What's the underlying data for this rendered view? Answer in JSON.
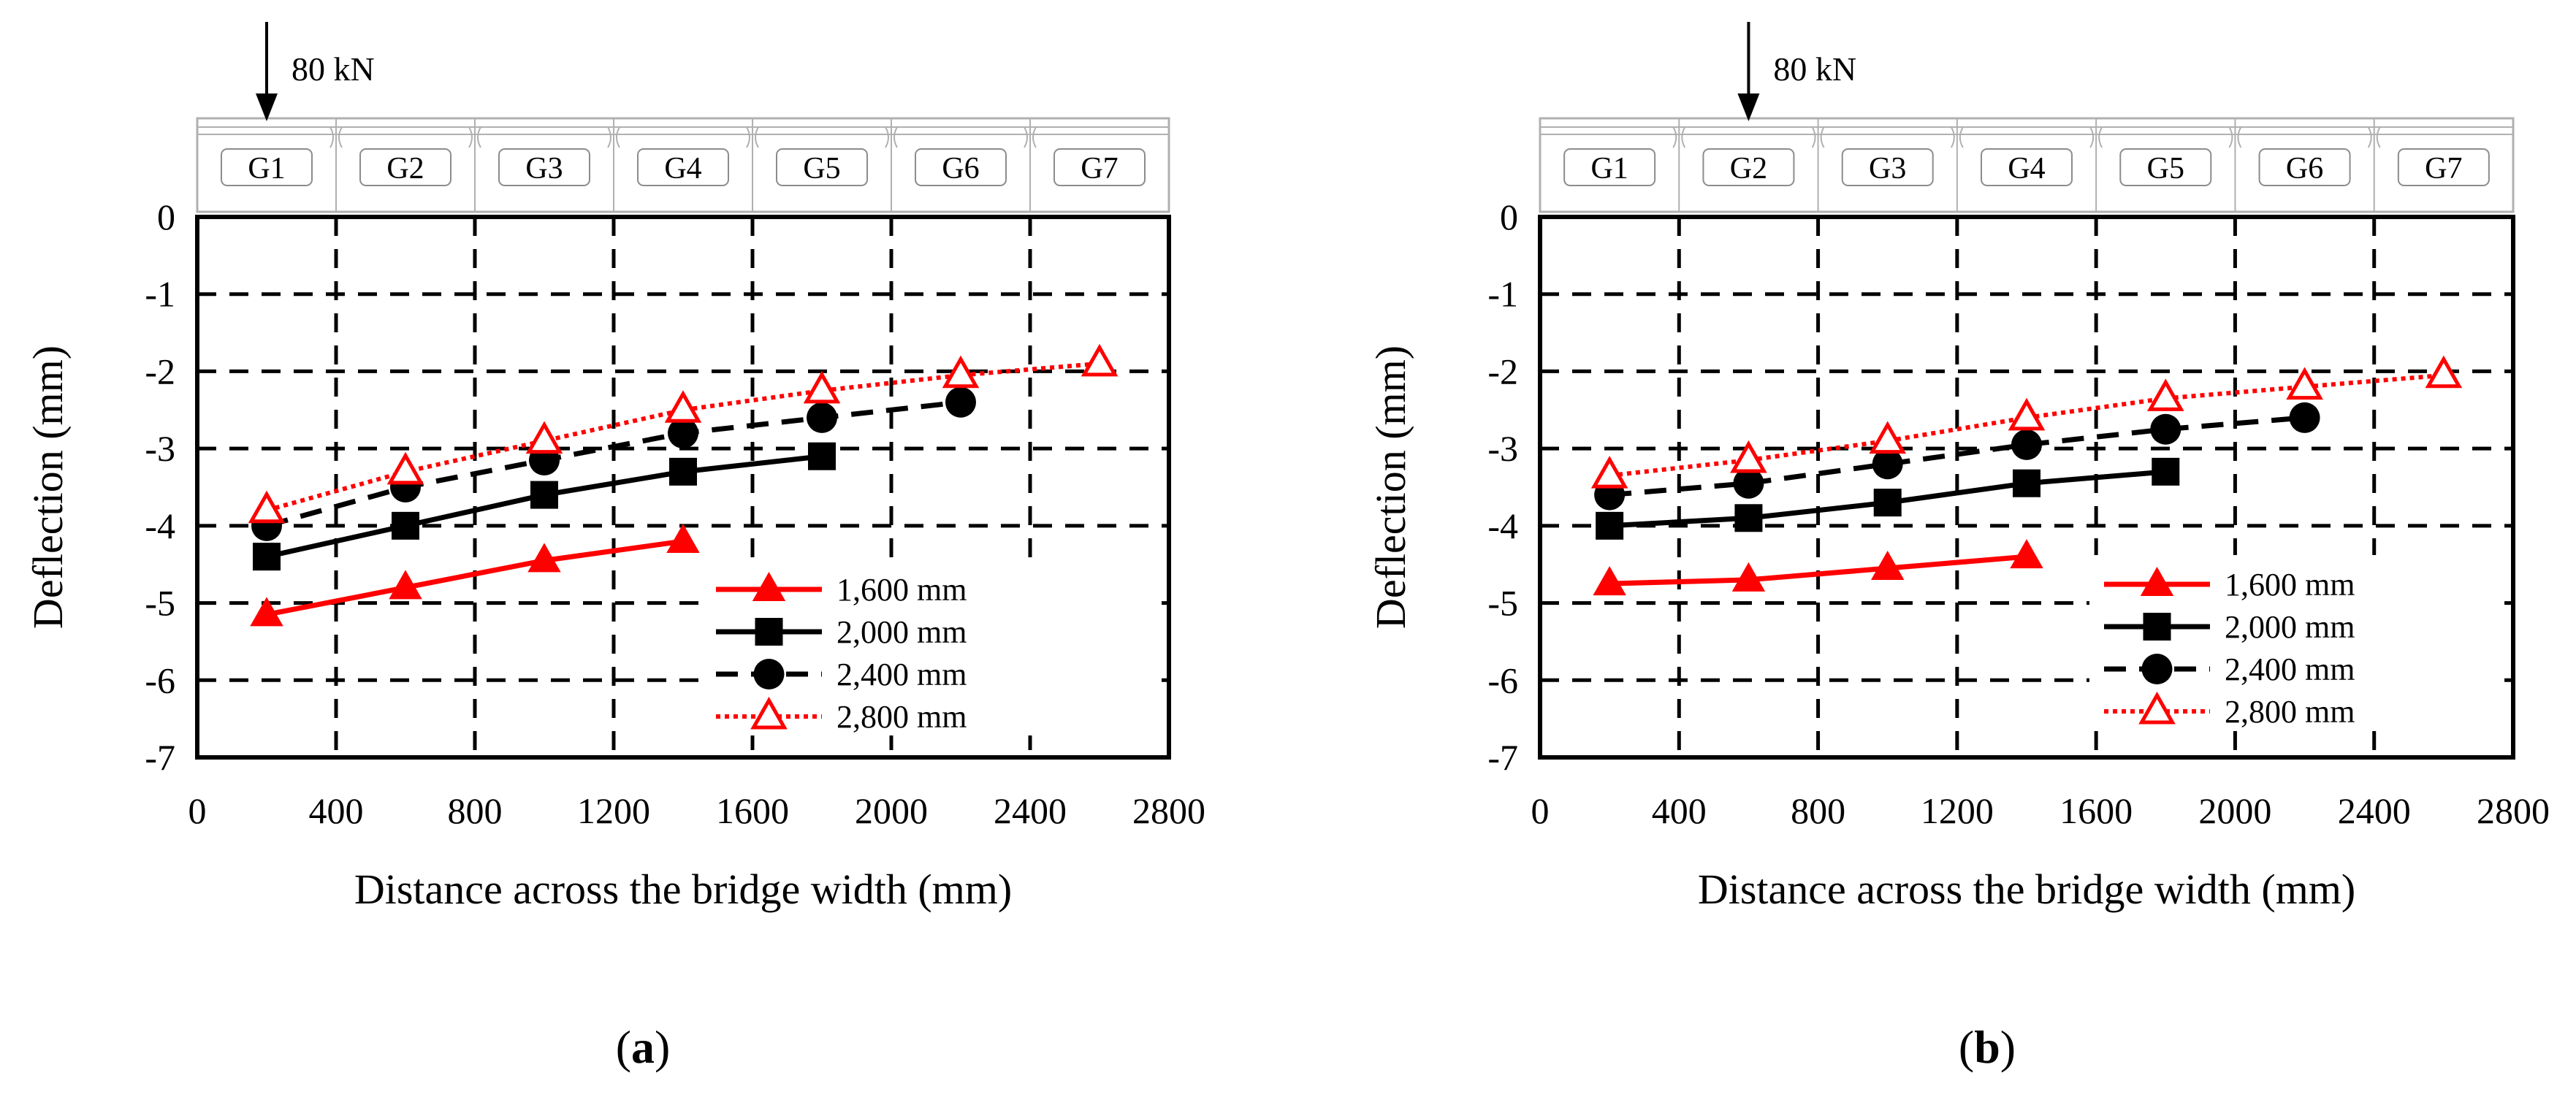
{
  "chart_data": [
    {
      "type": "line",
      "panel": "a",
      "caption_prefix": "(",
      "caption_letter": "a",
      "caption_suffix": ")",
      "load_label": "80 kN",
      "load_position_x": 200,
      "girders": [
        "G1",
        "G2",
        "G3",
        "G4",
        "G5",
        "G6",
        "G7"
      ],
      "xlabel": "Distance across the bridge width (mm)",
      "ylabel": "Deflection (mm)",
      "xlim": [
        0,
        2800
      ],
      "ylim": [
        -7,
        0
      ],
      "xticks": [
        0,
        400,
        800,
        1200,
        1600,
        2000,
        2400,
        2800
      ],
      "yticks": [
        0,
        -1,
        -2,
        -3,
        -4,
        -5,
        -6,
        -7
      ],
      "grid": true,
      "legend_position": "bottom-right",
      "series": [
        {
          "name": "1,600 mm",
          "color": "#ff0000",
          "line_style": "solid",
          "marker": "filled-triangle",
          "x": [
            200,
            600,
            1000,
            1400
          ],
          "y": [
            -5.15,
            -4.8,
            -4.45,
            -4.2
          ]
        },
        {
          "name": "2,000 mm",
          "color": "#000000",
          "line_style": "solid",
          "marker": "filled-square",
          "x": [
            200,
            600,
            1000,
            1400,
            1800
          ],
          "y": [
            -4.4,
            -4.0,
            -3.6,
            -3.3,
            -3.1
          ]
        },
        {
          "name": "2,400 mm",
          "color": "#000000",
          "line_style": "dashed",
          "marker": "filled-circle",
          "x": [
            200,
            600,
            1000,
            1400,
            1800,
            2200
          ],
          "y": [
            -4.0,
            -3.5,
            -3.15,
            -2.8,
            -2.6,
            -2.4
          ]
        },
        {
          "name": "2,800 mm",
          "color": "#ff0000",
          "line_style": "dotted",
          "marker": "open-triangle",
          "x": [
            200,
            600,
            1000,
            1400,
            1800,
            2200,
            2600
          ],
          "y": [
            -3.8,
            -3.3,
            -2.9,
            -2.5,
            -2.25,
            -2.05,
            -1.9
          ]
        }
      ]
    },
    {
      "type": "line",
      "panel": "b",
      "caption_prefix": "(",
      "caption_letter": "b",
      "caption_suffix": ")",
      "load_label": "80 kN",
      "load_position_x": 600,
      "girders": [
        "G1",
        "G2",
        "G3",
        "G4",
        "G5",
        "G6",
        "G7"
      ],
      "xlabel": "Distance across the bridge width (mm)",
      "ylabel": "Deflection (mm)",
      "xlim": [
        0,
        2800
      ],
      "ylim": [
        -7,
        0
      ],
      "xticks": [
        0,
        400,
        800,
        1200,
        1600,
        2000,
        2400,
        2800
      ],
      "yticks": [
        0,
        -1,
        -2,
        -3,
        -4,
        -5,
        -6,
        -7
      ],
      "grid": true,
      "legend_position": "bottom-right",
      "series": [
        {
          "name": "1,600 mm",
          "color": "#ff0000",
          "line_style": "solid",
          "marker": "filled-triangle",
          "x": [
            200,
            600,
            1000,
            1400
          ],
          "y": [
            -4.75,
            -4.7,
            -4.55,
            -4.4
          ]
        },
        {
          "name": "2,000 mm",
          "color": "#000000",
          "line_style": "solid",
          "marker": "filled-square",
          "x": [
            200,
            600,
            1000,
            1400,
            1800
          ],
          "y": [
            -4.0,
            -3.9,
            -3.7,
            -3.45,
            -3.3
          ]
        },
        {
          "name": "2,400 mm",
          "color": "#000000",
          "line_style": "dashed",
          "marker": "filled-circle",
          "x": [
            200,
            600,
            1000,
            1400,
            1800,
            2200
          ],
          "y": [
            -3.6,
            -3.45,
            -3.2,
            -2.95,
            -2.75,
            -2.6
          ]
        },
        {
          "name": "2,800 mm",
          "color": "#ff0000",
          "line_style": "dotted",
          "marker": "open-triangle",
          "x": [
            200,
            600,
            1000,
            1400,
            1800,
            2200,
            2600
          ],
          "y": [
            -3.35,
            -3.15,
            -2.9,
            -2.6,
            -2.35,
            -2.2,
            -2.05
          ]
        }
      ]
    }
  ]
}
